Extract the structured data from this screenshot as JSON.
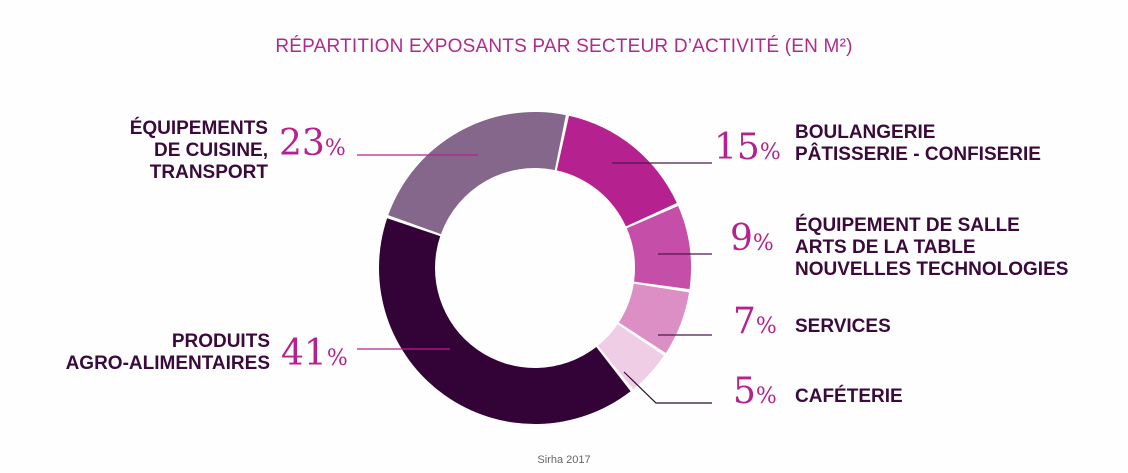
{
  "chart_data": {
    "type": "pie",
    "donut": true,
    "title": "RÉPARTITION EXPOSANTS PAR SECTEUR D’ACTIVITÉ (EN M²)",
    "unit": "%",
    "slices": [
      {
        "label": "BOULANGERIE\nPÂTISSERIE - CONFISERIE",
        "value": 15,
        "color": "#b5218f"
      },
      {
        "label": "ÉQUIPEMENT DE SALLE\nARTS DE LA TABLE\nNOUVELLES TECHNOLOGIES",
        "value": 9,
        "color": "#c44ea8"
      },
      {
        "label": "SERVICES",
        "value": 7,
        "color": "#dc8fc5"
      },
      {
        "label": "CAFÉTERIE",
        "value": 5,
        "color": "#efcde5"
      },
      {
        "label": "PRODUITS\nAGRO-ALIMENTAIRES",
        "value": 41,
        "color": "#330236"
      },
      {
        "label": "ÉQUIPEMENTS\nDE CUISINE,\nTRANSPORT",
        "value": 23,
        "color": "#84678a"
      }
    ],
    "source": "Sirha 2017"
  },
  "labels": {
    "boulangerie": [
      "BOULANGERIE",
      "PÂTISSERIE - CONFISERIE"
    ],
    "salle": [
      "ÉQUIPEMENT DE SALLE",
      "ARTS DE LA TABLE",
      "NOUVELLES TECHNOLOGIES"
    ],
    "services": [
      "SERVICES"
    ],
    "cafeterie": [
      "CAFÉTERIE"
    ],
    "produits": [
      "PRODUITS",
      "AGRO-ALIMENTAIRES"
    ],
    "equipements": [
      "ÉQUIPEMENTS",
      "DE CUISINE,",
      "TRANSPORT"
    ],
    "pct": {
      "boulangerie": "15",
      "salle": "9",
      "services": "7",
      "cafeterie": "5",
      "produits": "41",
      "equipements": "23",
      "sign": "%"
    }
  }
}
